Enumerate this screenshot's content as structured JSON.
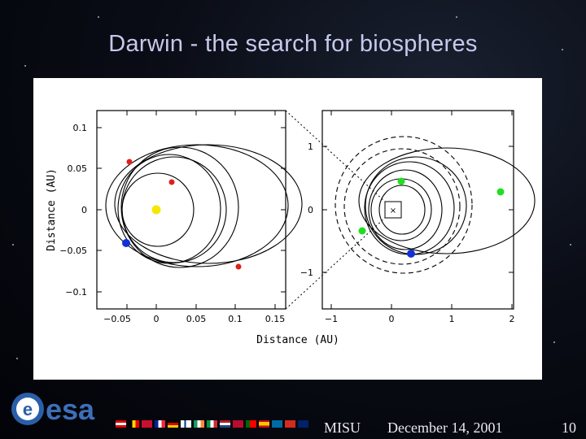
{
  "slide": {
    "title": "Darwin - the search for biospheres",
    "page_number": "10"
  },
  "footer": {
    "org": "MISU",
    "date": "December 14, 2001",
    "logo_text": "esa"
  },
  "figure": {
    "y_axis_label": "Distance (AU)",
    "x_axis_label": "Distance (AU)",
    "left_panel": {
      "x_ticks": [
        "−0.05",
        "0",
        "0.05",
        "0.1",
        "0.15"
      ],
      "y_ticks": [
        "0.1",
        "0.05",
        "0",
        "−0.05",
        "−0.1"
      ]
    },
    "right_panel": {
      "x_ticks": [
        "−1",
        "0",
        "1",
        "2"
      ],
      "y_ticks": [
        "1",
        "0",
        "−1"
      ],
      "star_marker": "×"
    },
    "colors": {
      "star": "#f5e800",
      "red_planet": "#e0201a",
      "blue_planet": "#1230d8",
      "green_planet": "#22dd22"
    }
  }
}
